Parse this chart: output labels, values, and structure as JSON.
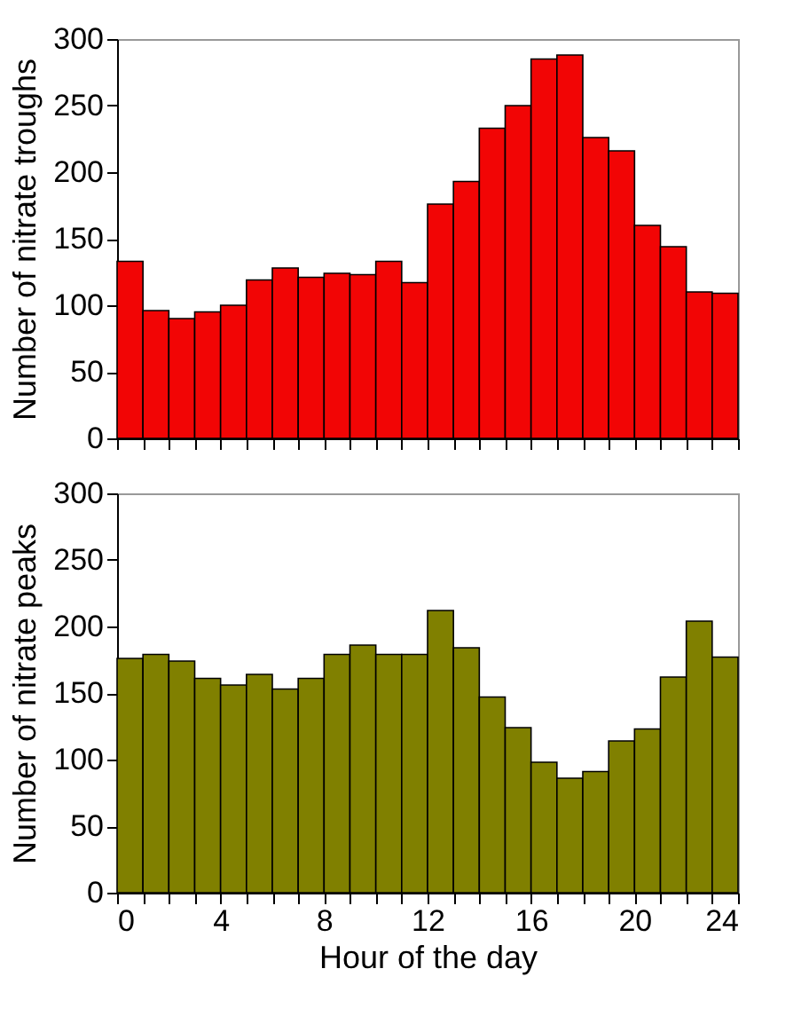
{
  "chart_data": [
    {
      "type": "histogram",
      "ylabel": "Number of nitrate troughs",
      "bins": [
        0,
        1,
        2,
        3,
        4,
        5,
        6,
        7,
        8,
        9,
        10,
        11,
        12,
        13,
        14,
        15,
        16,
        17,
        18,
        19,
        20,
        21,
        22,
        23,
        24
      ],
      "values": [
        133,
        96,
        90,
        95,
        100,
        119,
        128,
        121,
        124,
        123,
        133,
        117,
        176,
        193,
        233,
        250,
        285,
        288,
        226,
        216,
        160,
        144,
        110,
        109
      ],
      "color": "#f20505",
      "xlim": [
        0,
        24
      ],
      "ylim": [
        0,
        300
      ],
      "xticks": [
        0,
        {
          "value": 1,
          "label": null
        },
        {
          "value": 2,
          "label": null
        },
        {
          "value": 3,
          "label": null
        },
        4,
        {
          "value": 5,
          "label": null
        },
        {
          "value": 6,
          "label": null
        },
        {
          "value": 7,
          "label": null
        },
        8,
        {
          "value": 9,
          "label": null
        },
        {
          "value": 10,
          "label": null
        },
        {
          "value": 11,
          "label": null
        },
        12,
        {
          "value": 13,
          "label": null
        },
        {
          "value": 14,
          "label": null
        },
        {
          "value": 15,
          "label": null
        },
        16,
        {
          "value": 17,
          "label": null
        },
        {
          "value": 18,
          "label": null
        },
        {
          "value": 19,
          "label": null
        },
        20,
        {
          "value": 21,
          "label": null
        },
        {
          "value": 22,
          "label": null
        },
        {
          "value": 23,
          "label": null
        },
        24
      ],
      "yticks": [
        0,
        50,
        100,
        150,
        200,
        250,
        300
      ],
      "grid": false,
      "tick_labels": "y"
    },
    {
      "type": "histogram",
      "xlabel": "Hour of the day",
      "ylabel": "Number of nitrate peaks",
      "bins": [
        0,
        1,
        2,
        3,
        4,
        5,
        6,
        7,
        8,
        9,
        10,
        11,
        12,
        13,
        14,
        15,
        16,
        17,
        18,
        19,
        20,
        21,
        22,
        23,
        24
      ],
      "values": [
        176,
        179,
        174,
        161,
        156,
        164,
        153,
        161,
        179,
        186,
        179,
        179,
        212,
        184,
        147,
        124,
        98,
        86,
        91,
        114,
        123,
        162,
        204,
        177
      ],
      "color": "#808000",
      "xlim": [
        0,
        24
      ],
      "ylim": [
        0,
        300
      ],
      "xticks": [
        0,
        {
          "value": 1,
          "label": null
        },
        {
          "value": 2,
          "label": null
        },
        {
          "value": 3,
          "label": null
        },
        4,
        {
          "value": 5,
          "label": null
        },
        {
          "value": 6,
          "label": null
        },
        {
          "value": 7,
          "label": null
        },
        8,
        {
          "value": 9,
          "label": null
        },
        {
          "value": 10,
          "label": null
        },
        {
          "value": 11,
          "label": null
        },
        12,
        {
          "value": 13,
          "label": null
        },
        {
          "value": 14,
          "label": null
        },
        {
          "value": 15,
          "label": null
        },
        16,
        {
          "value": 17,
          "label": null
        },
        {
          "value": 18,
          "label": null
        },
        {
          "value": 19,
          "label": null
        },
        20,
        {
          "value": 21,
          "label": null
        },
        {
          "value": 22,
          "label": null
        },
        {
          "value": 23,
          "label": null
        },
        24
      ],
      "yticks": [
        0,
        50,
        100,
        150,
        200,
        250,
        300
      ],
      "grid": false
    }
  ]
}
